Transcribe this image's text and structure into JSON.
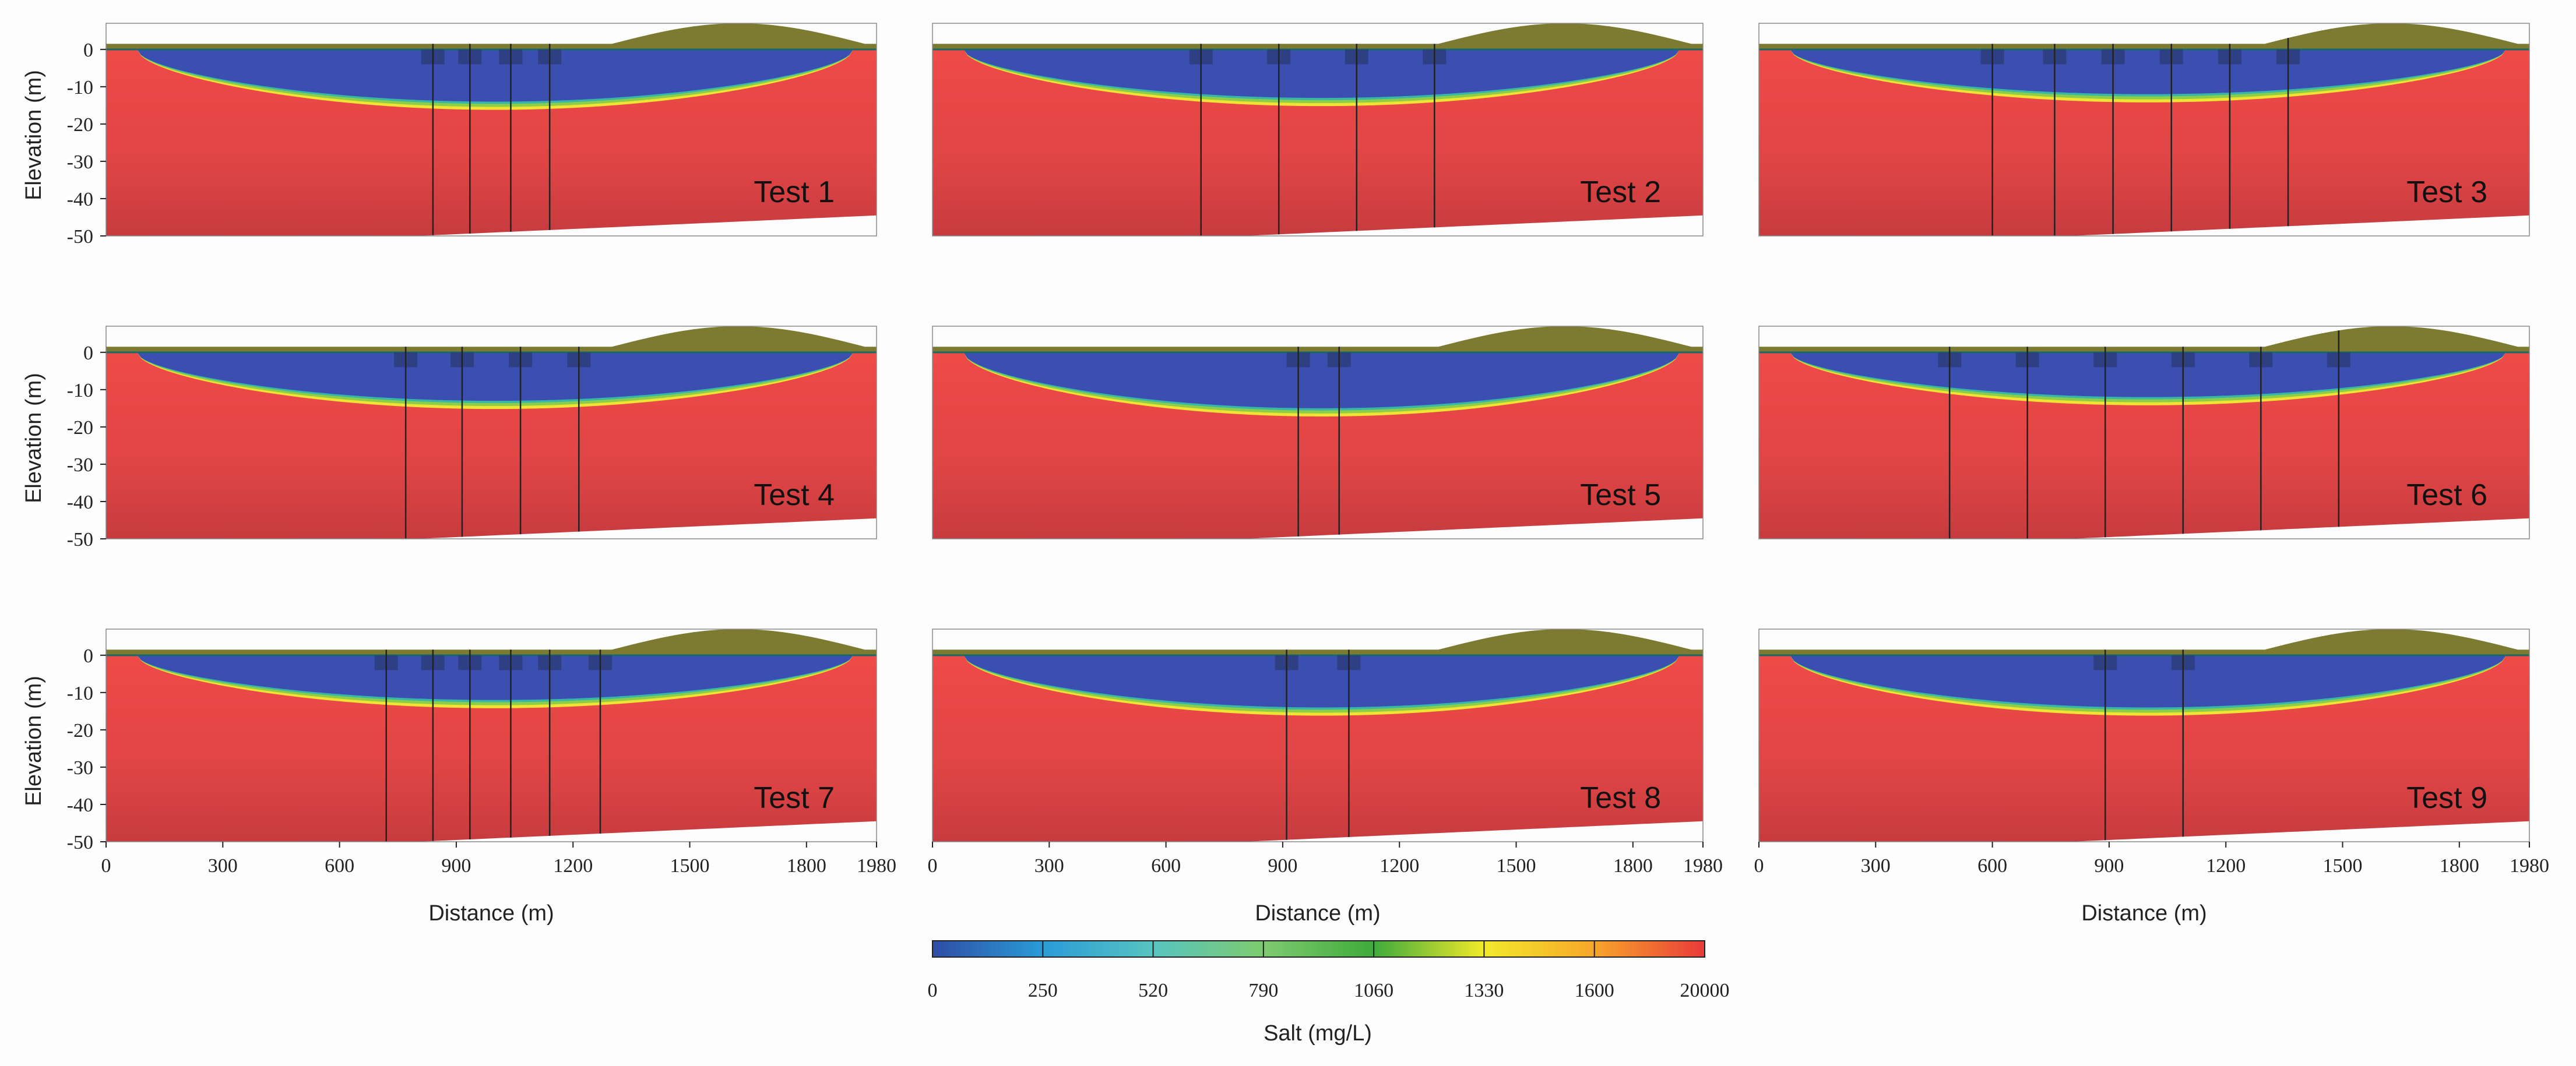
{
  "figure": {
    "ylabel": "Elevation (m)",
    "xlabel": "Distance (m)",
    "y_ticks": [
      0,
      -10,
      -20,
      -30,
      -40,
      -50
    ],
    "x_ticks": [
      0,
      300,
      600,
      900,
      1200,
      1500,
      1800,
      1980
    ]
  },
  "chart_data": [
    {
      "type": "heatmap",
      "title": "Test 1",
      "xlim": [
        0,
        1980
      ],
      "ylim": [
        -50,
        7
      ],
      "well_x": [
        840,
        935,
        1040,
        1140
      ],
      "freshwater_bottom": -14
    },
    {
      "type": "heatmap",
      "title": "Test 2",
      "xlim": [
        0,
        1980
      ],
      "ylim": [
        -50,
        7
      ],
      "well_x": [
        690,
        890,
        1090,
        1290
      ],
      "freshwater_bottom": -13
    },
    {
      "type": "heatmap",
      "title": "Test 3",
      "xlim": [
        0,
        1980
      ],
      "ylim": [
        -50,
        7
      ],
      "well_x": [
        600,
        760,
        910,
        1060,
        1210,
        1360
      ],
      "freshwater_bottom": -12
    },
    {
      "type": "heatmap",
      "title": "Test 4",
      "xlim": [
        0,
        1980
      ],
      "ylim": [
        -50,
        7
      ],
      "well_x": [
        770,
        915,
        1065,
        1215
      ],
      "freshwater_bottom": -13
    },
    {
      "type": "heatmap",
      "title": "Test 5",
      "xlim": [
        0,
        1980
      ],
      "ylim": [
        -50,
        7
      ],
      "well_x": [
        940,
        1045
      ],
      "freshwater_bottom": -15
    },
    {
      "type": "heatmap",
      "title": "Test 6",
      "xlim": [
        0,
        1980
      ],
      "ylim": [
        -50,
        7
      ],
      "well_x": [
        490,
        690,
        890,
        1090,
        1290,
        1490
      ],
      "freshwater_bottom": -12
    },
    {
      "type": "heatmap",
      "title": "Test 7",
      "xlim": [
        0,
        1980
      ],
      "ylim": [
        -50,
        7
      ],
      "well_x": [
        720,
        840,
        935,
        1040,
        1140,
        1270
      ],
      "freshwater_bottom": -12
    },
    {
      "type": "heatmap",
      "title": "Test 8",
      "xlim": [
        0,
        1980
      ],
      "ylim": [
        -50,
        7
      ],
      "well_x": [
        910,
        1070
      ],
      "freshwater_bottom": -14
    },
    {
      "type": "heatmap",
      "title": "Test 9",
      "xlim": [
        0,
        1980
      ],
      "ylim": [
        -50,
        7
      ],
      "well_x": [
        890,
        1090
      ],
      "freshwater_bottom": -14
    }
  ],
  "colorbar": {
    "label": "Salt (mg/L)",
    "ticks": [
      "0",
      "250",
      "520",
      "790",
      "1060",
      "1330",
      "1600",
      "20000"
    ],
    "colors": [
      "#2f4da6",
      "#2a9bd8",
      "#57c4c0",
      "#7ecb6e",
      "#3faa3c",
      "#f2ea2a",
      "#f7a52a",
      "#e93a3a"
    ]
  },
  "colors": {
    "salt": "#e24545",
    "salt_deep": "#c83a3e",
    "fresh": "#3b4fb0",
    "topsoil": "#7d7a32"
  }
}
